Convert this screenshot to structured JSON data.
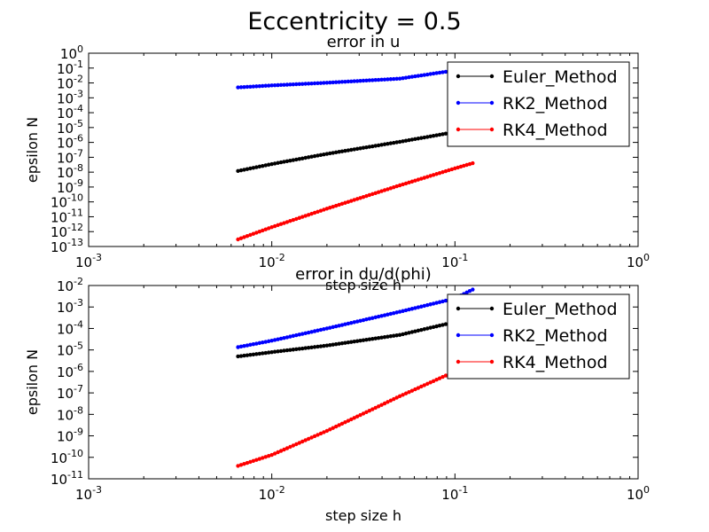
{
  "figure": {
    "suptitle": "Eccentricity = 0.5"
  },
  "chart_data": [
    {
      "type": "line",
      "title": "error in u",
      "xlabel": "step size h",
      "ylabel": "epsilon N",
      "x_scale": "log",
      "y_scale": "log",
      "xlim": [
        0.001,
        1
      ],
      "ylim": [
        1e-13,
        1
      ],
      "x_ticks": [
        0.001,
        0.01,
        0.1,
        1
      ],
      "y_ticks": [
        1e-13,
        1e-12,
        1e-11,
        1e-10,
        1e-09,
        1e-08,
        1e-07,
        1e-06,
        1e-05,
        0.0001,
        0.001,
        0.01,
        0.1,
        1
      ],
      "legend_position": "top-right",
      "grid": false,
      "series": [
        {
          "name": "Euler_Method",
          "color": "#000000",
          "x": [
            0.00654,
            0.01,
            0.02,
            0.05,
            0.1,
            0.125
          ],
          "y": [
            1.2e-08,
            3.5e-08,
            1.7e-07,
            1.1e-06,
            5e-06,
            8e-06
          ]
        },
        {
          "name": "RK2_Method",
          "color": "#0000ff",
          "x": [
            0.00654,
            0.01,
            0.02,
            0.05,
            0.1,
            0.125
          ],
          "y": [
            0.005,
            0.0068,
            0.0103,
            0.0195,
            0.07,
            0.11
          ]
        },
        {
          "name": "RK4_Method",
          "color": "#ff0000",
          "x": [
            0.00654,
            0.01,
            0.02,
            0.05,
            0.1,
            0.125
          ],
          "y": [
            3e-13,
            2e-12,
            3.5e-11,
            1.3e-09,
            1.8e-08,
            4e-08
          ]
        }
      ]
    },
    {
      "type": "line",
      "title": "error in du/d(phi)",
      "xlabel": "step size h",
      "ylabel": "epsilon N",
      "x_scale": "log",
      "y_scale": "log",
      "xlim": [
        0.001,
        1
      ],
      "ylim": [
        1e-11,
        0.01
      ],
      "x_ticks": [
        0.001,
        0.01,
        0.1,
        1
      ],
      "y_ticks": [
        1e-11,
        1e-10,
        1e-09,
        1e-08,
        1e-07,
        1e-06,
        1e-05,
        0.0001,
        0.001,
        0.01
      ],
      "legend_position": "top-right",
      "grid": false,
      "series": [
        {
          "name": "Euler_Method",
          "color": "#000000",
          "x": [
            0.00654,
            0.01,
            0.02,
            0.05,
            0.1,
            0.125
          ],
          "y": [
            5e-06,
            7.9e-06,
            1.6e-05,
            5e-05,
            0.0002,
            0.00025
          ]
        },
        {
          "name": "RK2_Method",
          "color": "#0000ff",
          "x": [
            0.00654,
            0.01,
            0.02,
            0.05,
            0.1,
            0.125
          ],
          "y": [
            1.35e-05,
            2.7e-05,
            0.0001,
            0.0006,
            0.0025,
            0.0065
          ]
        },
        {
          "name": "RK4_Method",
          "color": "#ff0000",
          "x": [
            0.00654,
            0.01,
            0.02,
            0.05,
            0.1,
            0.125
          ],
          "y": [
            4e-11,
            1.3e-10,
            1.7e-09,
            7e-08,
            1e-06,
            2.5e-06
          ]
        }
      ]
    }
  ]
}
